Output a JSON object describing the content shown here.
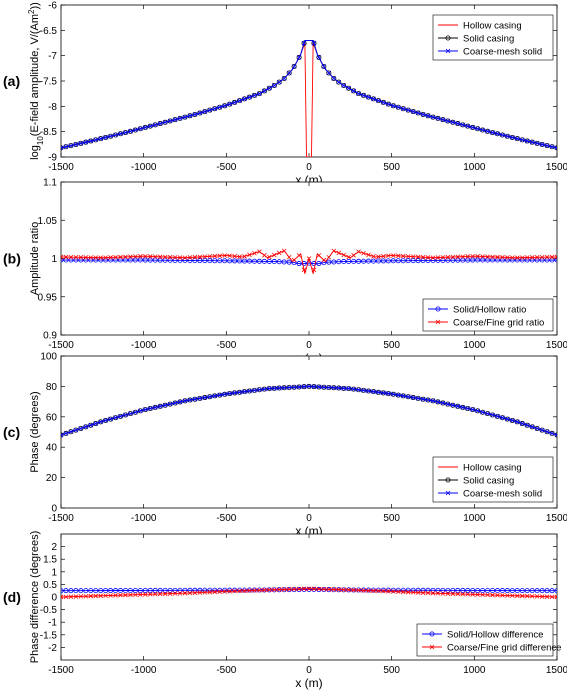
{
  "chart_data": [
    {
      "panel_label": "(a)",
      "type": "line",
      "xlabel": "x (m)",
      "ylabel_parts": [
        "log",
        "10",
        "(E-field amplitude, V/(Am",
        "2",
        "))"
      ],
      "xlim": [
        -1500,
        1500
      ],
      "ylim": [
        -9,
        -6
      ],
      "xticks": [
        -1500,
        -1000,
        -500,
        0,
        500,
        1000,
        1500
      ],
      "yticks": [
        -9,
        -8.5,
        -8,
        -7.5,
        -7,
        -6.5,
        -6
      ],
      "grid": false,
      "legend_position": "top-right",
      "series": [
        {
          "name": "Hollow casing",
          "color": "#ff0000",
          "marker": "none",
          "x": [
            -1500,
            -1300,
            -1100,
            -900,
            -700,
            -500,
            -300,
            -200,
            -150,
            -100,
            -75,
            -50,
            -25,
            -15,
            0,
            15,
            25,
            50,
            75,
            100,
            150,
            200,
            300,
            500,
            700,
            900,
            1100,
            1300,
            1500
          ],
          "y": [
            -8.82,
            -8.67,
            -8.51,
            -8.34,
            -8.17,
            -7.98,
            -7.75,
            -7.57,
            -7.45,
            -7.27,
            -7.13,
            -6.97,
            -6.75,
            -9,
            -9,
            -9,
            -6.75,
            -6.97,
            -7.13,
            -7.27,
            -7.45,
            -7.57,
            -7.75,
            -7.98,
            -8.17,
            -8.34,
            -8.51,
            -8.67,
            -8.82
          ]
        },
        {
          "name": "Solid casing",
          "color": "#000000",
          "marker": "circle",
          "x": [
            -1500,
            -1300,
            -1100,
            -900,
            -700,
            -500,
            -300,
            -200,
            -150,
            -100,
            -75,
            -50,
            -25,
            25,
            50,
            75,
            100,
            150,
            200,
            300,
            500,
            700,
            900,
            1100,
            1300,
            1500
          ],
          "y": [
            -8.82,
            -8.67,
            -8.51,
            -8.34,
            -8.17,
            -7.98,
            -7.75,
            -7.57,
            -7.45,
            -7.27,
            -7.13,
            -6.97,
            -6.7,
            -6.7,
            -6.97,
            -7.13,
            -7.27,
            -7.45,
            -7.57,
            -7.75,
            -7.98,
            -8.17,
            -8.34,
            -8.51,
            -8.67,
            -8.82
          ]
        },
        {
          "name": "Coarse-mesh solid",
          "color": "#0000ff",
          "marker": "x",
          "x": [
            -1500,
            -1300,
            -1100,
            -900,
            -700,
            -500,
            -300,
            -200,
            -150,
            -100,
            -75,
            -50,
            -25,
            25,
            50,
            75,
            100,
            150,
            200,
            300,
            500,
            700,
            900,
            1100,
            1300,
            1500
          ],
          "y": [
            -8.82,
            -8.67,
            -8.51,
            -8.34,
            -8.17,
            -7.98,
            -7.75,
            -7.57,
            -7.45,
            -7.27,
            -7.13,
            -6.97,
            -6.7,
            -6.7,
            -6.97,
            -7.13,
            -7.27,
            -7.45,
            -7.57,
            -7.75,
            -7.98,
            -8.17,
            -8.34,
            -8.51,
            -8.67,
            -8.82
          ]
        }
      ]
    },
    {
      "panel_label": "(b)",
      "type": "line",
      "xlabel": "x (m)",
      "ylabel": "Amplitude ratio",
      "xlim": [
        -1500,
        1500
      ],
      "ylim": [
        0.9,
        1.1
      ],
      "xticks": [
        -1500,
        -1000,
        -500,
        0,
        500,
        1000,
        1500
      ],
      "yticks": [
        0.9,
        0.95,
        1,
        1.05,
        1.1
      ],
      "grid": false,
      "legend_position": "bottom-right",
      "series": [
        {
          "name": "Solid/Hollow ratio",
          "color": "#0000ff",
          "marker": "circle",
          "x": [
            -1500,
            -1000,
            -500,
            -200,
            -100,
            -50,
            0,
            50,
            100,
            200,
            500,
            1000,
            1500
          ],
          "y": [
            0.998,
            0.998,
            0.997,
            0.996,
            0.995,
            0.993,
            0.994,
            0.993,
            0.995,
            0.996,
            0.997,
            0.998,
            0.998
          ]
        },
        {
          "name": "Coarse/Fine grid ratio",
          "color": "#ff0000",
          "marker": "x",
          "x": [
            -1500,
            -1250,
            -1000,
            -750,
            -500,
            -400,
            -300,
            -250,
            -150,
            -100,
            -50,
            -25,
            0,
            25,
            50,
            100,
            150,
            250,
            300,
            400,
            500,
            750,
            1000,
            1250,
            1500
          ],
          "y": [
            1.002,
            1.001,
            1.003,
            1.001,
            1.004,
            1.002,
            1.009,
            1.001,
            1.01,
            0.996,
            1.006,
            0.98,
            1.0,
            0.98,
            1.006,
            0.996,
            1.01,
            1.001,
            1.009,
            1.002,
            1.004,
            1.001,
            1.003,
            1.001,
            1.002
          ]
        }
      ]
    },
    {
      "panel_label": "(c)",
      "type": "line",
      "xlabel": "x (m)",
      "ylabel": "Phase (degrees)",
      "xlim": [
        -1500,
        1500
      ],
      "ylim": [
        0,
        100
      ],
      "xticks": [
        -1500,
        -1000,
        -500,
        0,
        500,
        1000,
        1500
      ],
      "yticks": [
        0,
        20,
        40,
        60,
        80,
        100
      ],
      "grid": false,
      "legend_position": "bottom-right",
      "series": [
        {
          "name": "Hollow casing",
          "color": "#ff0000",
          "marker": "none",
          "x": [
            -1500,
            -1250,
            -1000,
            -750,
            -500,
            -250,
            0,
            250,
            500,
            750,
            1000,
            1250,
            1500
          ],
          "y": [
            48,
            57,
            64.5,
            70.5,
            75,
            78.5,
            80,
            78.5,
            75,
            70.5,
            64.5,
            57,
            48
          ]
        },
        {
          "name": "Solid casing",
          "color": "#000000",
          "marker": "circle",
          "x": [
            -1500,
            -1250,
            -1000,
            -750,
            -500,
            -250,
            0,
            250,
            500,
            750,
            1000,
            1250,
            1500
          ],
          "y": [
            48,
            57,
            64.5,
            70.5,
            75,
            78.5,
            80,
            78.5,
            75,
            70.5,
            64.5,
            57,
            48
          ]
        },
        {
          "name": "Coarse-mesh solid",
          "color": "#0000ff",
          "marker": "x",
          "x": [
            -1500,
            -1250,
            -1000,
            -750,
            -500,
            -250,
            0,
            250,
            500,
            750,
            1000,
            1250,
            1500
          ],
          "y": [
            48,
            57,
            64.5,
            70.5,
            75,
            78.5,
            80,
            78.5,
            75,
            70.5,
            64.5,
            57,
            48
          ]
        }
      ]
    },
    {
      "panel_label": "(d)",
      "type": "line",
      "xlabel": "x (m)",
      "ylabel": "Phase difference (degrees)",
      "xlim": [
        -1500,
        1500
      ],
      "ylim": [
        -2.5,
        2.5
      ],
      "xticks": [
        -1500,
        -1000,
        -500,
        0,
        500,
        1000,
        1500
      ],
      "yticks": [
        -2,
        -1.5,
        -1,
        -0.5,
        0,
        0.5,
        1,
        1.5,
        2
      ],
      "grid": false,
      "legend_position": "bottom-right",
      "series": [
        {
          "name": "Solid/Hollow difference",
          "color": "#0000ff",
          "marker": "circle",
          "x": [
            -1500,
            -1000,
            -500,
            -250,
            0,
            250,
            500,
            1000,
            1500
          ],
          "y": [
            0.25,
            0.26,
            0.27,
            0.28,
            0.3,
            0.28,
            0.27,
            0.26,
            0.25
          ]
        },
        {
          "name": "Coarse/Fine grid difference",
          "color": "#ff0000",
          "marker": "x",
          "x": [
            -1500,
            -1250,
            -1000,
            -750,
            -500,
            -250,
            0,
            250,
            500,
            750,
            1000,
            1250,
            1500
          ],
          "y": [
            0.0,
            0.05,
            0.1,
            0.15,
            0.22,
            0.28,
            0.33,
            0.28,
            0.22,
            0.15,
            0.1,
            0.05,
            0.0
          ]
        }
      ]
    }
  ]
}
